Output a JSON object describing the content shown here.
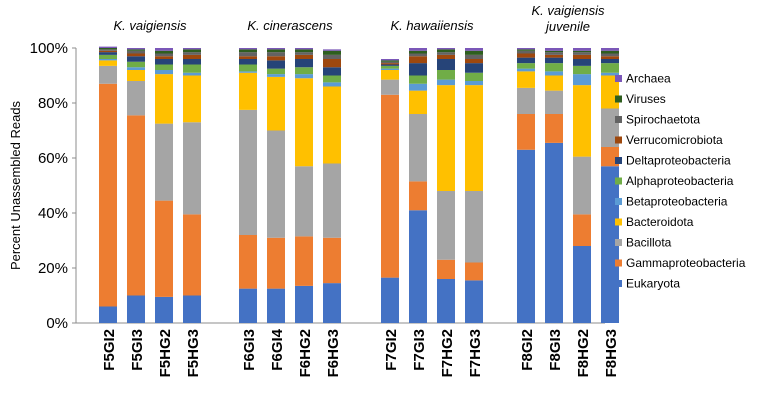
{
  "chart_data": {
    "type": "bar",
    "stacked": true,
    "ylabel": "Percent Unassembled Reads",
    "ylim": [
      0,
      100
    ],
    "yticks": [
      "0%",
      "20%",
      "40%",
      "60%",
      "80%",
      "100%"
    ],
    "grid": false,
    "legend_position": "right",
    "groups": [
      {
        "label_lines": [
          "K. vaigiensis"
        ],
        "categories": [
          "F5GI2",
          "F5GI3",
          "F5HG2",
          "F5HG3"
        ]
      },
      {
        "label_lines": [
          "K. cinerascens"
        ],
        "categories": [
          "F6GI3",
          "F6GI4",
          "F6HG2",
          "F6HG3"
        ]
      },
      {
        "label_lines": [
          "K. hawaiiensis"
        ],
        "categories": [
          "F7GI2",
          "F7GI3",
          "F7HG2",
          "F7HG3"
        ]
      },
      {
        "label_lines": [
          "K. vaigiensis",
          "juvenile"
        ],
        "categories": [
          "F8GI2",
          "F8GI3",
          "F8HG2",
          "F8HG3"
        ]
      }
    ],
    "categories": [
      "F5GI2",
      "F5GI3",
      "F5HG2",
      "F5HG3",
      "F6GI3",
      "F6GI4",
      "F6HG2",
      "F6HG3",
      "F7GI2",
      "F7GI3",
      "F7HG2",
      "F7HG3",
      "F8GI2",
      "F8GI3",
      "F8HG2",
      "F8HG3"
    ],
    "series": [
      {
        "name": "Eukaryota",
        "color": "#4472C4",
        "values": [
          6,
          10,
          9.5,
          10,
          12.5,
          12.5,
          13.5,
          14.5,
          16.5,
          41,
          16,
          15.5,
          63,
          65.5,
          28,
          57
        ]
      },
      {
        "name": "Gammaproteobacteria",
        "color": "#ED7D31",
        "values": [
          81,
          65.5,
          35,
          29.5,
          19.5,
          18.5,
          18,
          16.5,
          66.5,
          10.5,
          7,
          6.5,
          13,
          10.5,
          11.5,
          7
        ]
      },
      {
        "name": "Bacillota",
        "color": "#A5A5A5",
        "values": [
          6.5,
          12.5,
          28,
          33.5,
          45.5,
          39,
          25.5,
          27,
          5.5,
          24.5,
          25,
          26,
          9.5,
          8.5,
          21,
          14
        ]
      },
      {
        "name": "Bacteroidota",
        "color": "#FFC000",
        "values": [
          2,
          4,
          18,
          17,
          13.5,
          19.5,
          32,
          28,
          3.5,
          8.5,
          38.5,
          38.5,
          6,
          5.5,
          26,
          12
        ]
      },
      {
        "name": "Betaproteobacteria",
        "color": "#5B9BD5",
        "values": [
          0.5,
          1,
          1.5,
          1,
          0.5,
          1,
          1.5,
          1.5,
          0.5,
          2.5,
          2,
          1.5,
          1,
          1.5,
          4,
          1
        ]
      },
      {
        "name": "Alphaproteobacteria",
        "color": "#70AD47",
        "values": [
          1.5,
          2,
          2,
          3,
          2.5,
          2,
          2.5,
          2.5,
          1,
          3,
          3.5,
          3,
          2,
          3,
          3,
          3.5
        ]
      },
      {
        "name": "Deltaproteobacteria",
        "color": "#264478",
        "values": [
          1,
          2,
          2,
          2,
          2,
          3,
          3,
          3,
          0.5,
          4.5,
          4,
          3.5,
          2,
          2,
          2.5,
          1.5
        ]
      },
      {
        "name": "Verrucomicrobiota",
        "color": "#9E480E",
        "values": [
          0.5,
          1,
          1,
          1.5,
          1,
          1.5,
          1.5,
          3,
          0.5,
          2.5,
          1.5,
          1.5,
          1.5,
          1,
          1.5,
          1
        ]
      },
      {
        "name": "Spirochaetota",
        "color": "#636363",
        "values": [
          0.5,
          1,
          1,
          1,
          1.5,
          1.5,
          1,
          1.5,
          0.5,
          1,
          1,
          1.5,
          1,
          1,
          1,
          1
        ]
      },
      {
        "name": "Viruses",
        "color": "#2E5E1F",
        "values": [
          0.5,
          0.5,
          1,
          1,
          1,
          1,
          1,
          1.5,
          0.5,
          1,
          1,
          1.5,
          0.5,
          0.5,
          0.5,
          1
        ]
      },
      {
        "name": "Archaea",
        "color": "#7B57B8",
        "values": [
          0.5,
          0.5,
          1,
          0.5,
          0.5,
          0.5,
          0.5,
          0.5,
          0.5,
          1,
          0.5,
          1,
          0.5,
          1,
          1,
          1
        ]
      }
    ],
    "legend_order": [
      "Archaea",
      "Viruses",
      "Spirochaetota",
      "Verrucomicrobiota",
      "Deltaproteobacteria",
      "Alphaproteobacteria",
      "Betaproteobacteria",
      "Bacteroidota",
      "Bacillota",
      "Gammaproteobacteria",
      "Eukaryota"
    ]
  }
}
